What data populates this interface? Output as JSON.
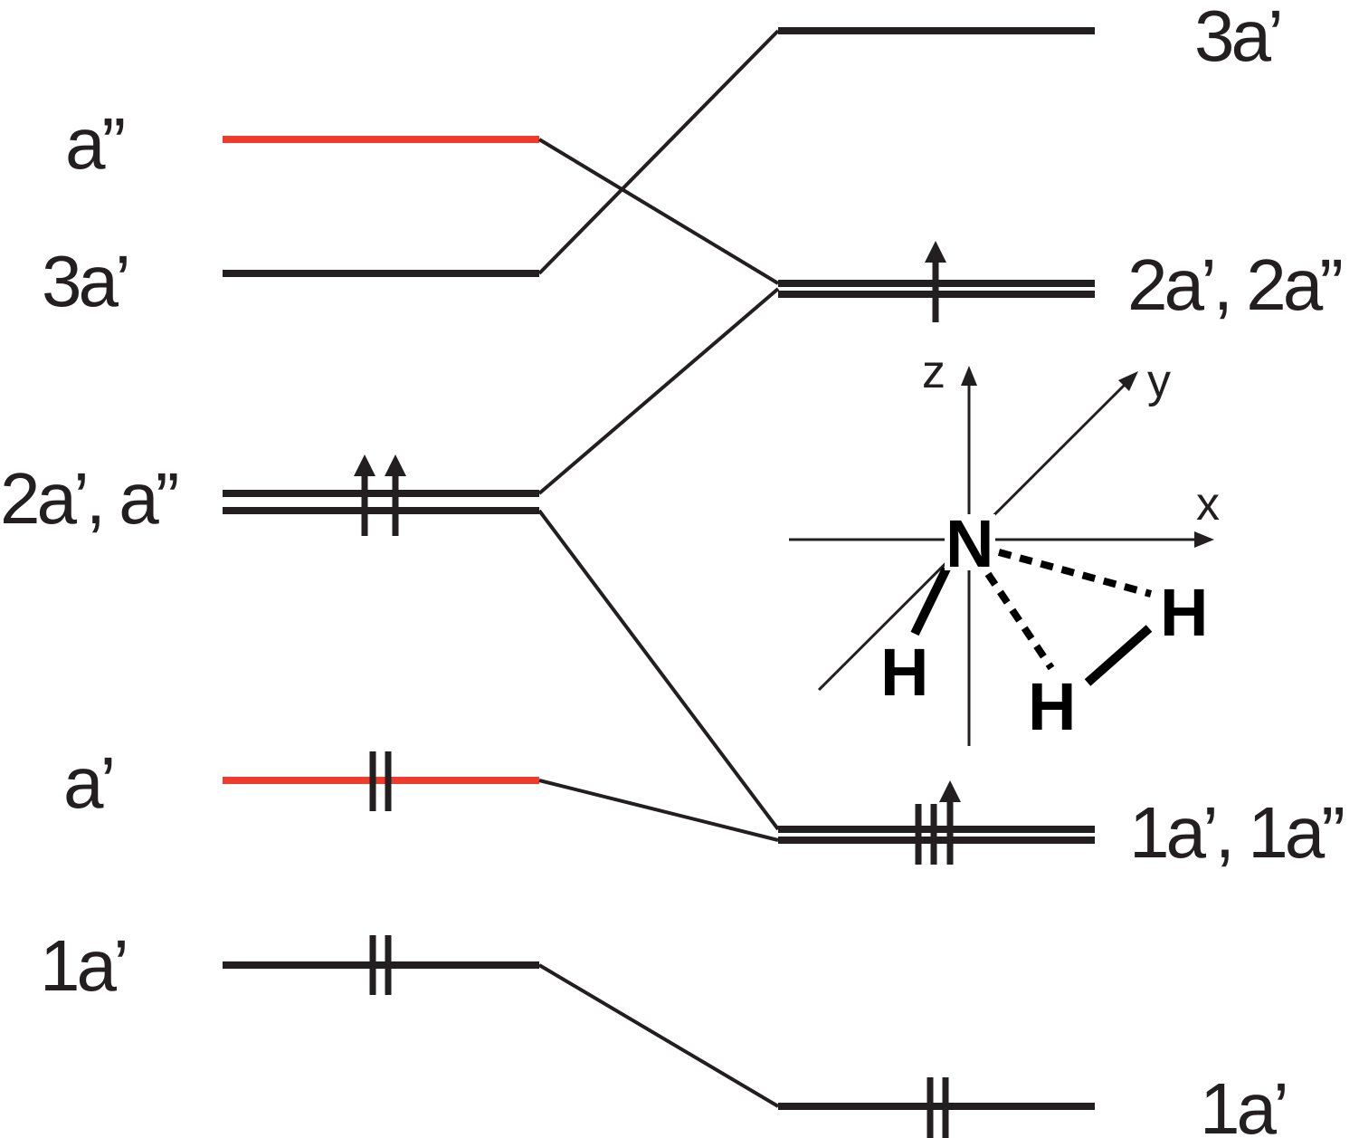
{
  "left_levels": {
    "a2": "a”",
    "3a1": "3a’",
    "2a1_a2": "2a’, a”",
    "a1": "a’",
    "1a1": "1a’"
  },
  "right_levels": {
    "3a1": "3a’",
    "2a1_2a2": "2a’, 2a”",
    "1a1_1a2": "1a’, 1a”",
    "1a1_low": "1a’"
  },
  "molecule": {
    "central_atom": "N",
    "ligand_1": "H",
    "ligand_2": "H",
    "ligand_3": "H"
  },
  "axes": {
    "x": "x",
    "y": "y",
    "z": "z"
  },
  "colors": {
    "level": "#231f20",
    "highlight": "#ee3b2b"
  }
}
